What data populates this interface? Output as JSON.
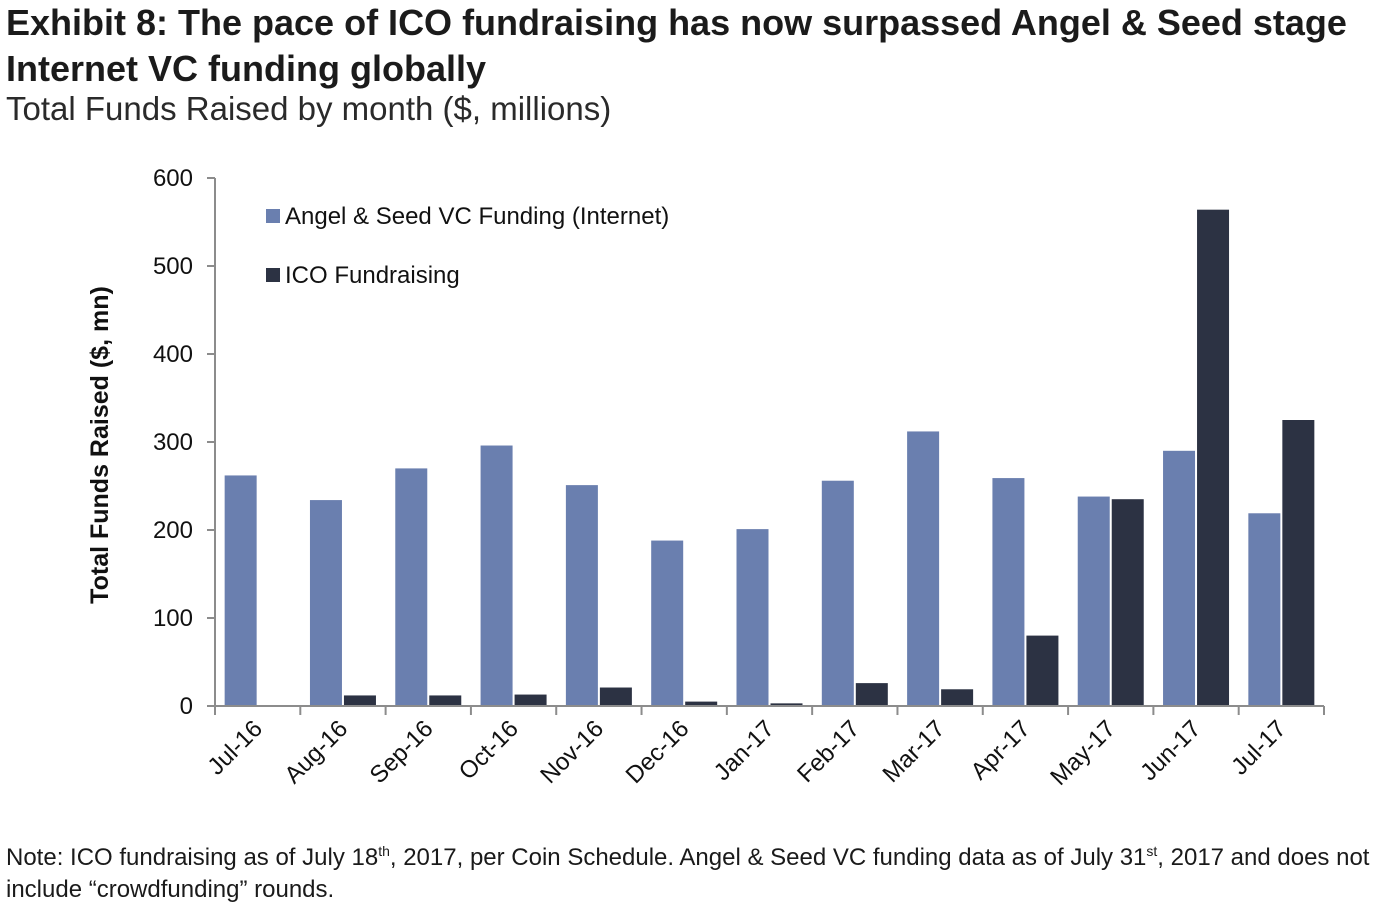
{
  "title": "Exhibit 8: The pace of ICO fundraising has now surpassed Angel & Seed stage Internet VC funding globally",
  "subtitle": "Total Funds Raised by month ($, millions)",
  "note": {
    "p1": "Note: ICO fundraising as of July 18",
    "sup1": "th",
    "p2": ", 2017, per Coin Schedule. Angel & Seed VC funding data as of July 31",
    "sup2": "st",
    "p3": ", 2017 and does not include “crowdfunding” rounds."
  },
  "chart_data": {
    "type": "bar",
    "ylabel": "Total Funds Raised ($, mn)",
    "xlabel": "",
    "ylim": [
      0,
      600
    ],
    "yticks": [
      0,
      100,
      200,
      300,
      400,
      500,
      600
    ],
    "categories": [
      "Jul-16",
      "Aug-16",
      "Sep-16",
      "Oct-16",
      "Nov-16",
      "Dec-16",
      "Jan-17",
      "Feb-17",
      "Mar-17",
      "Apr-17",
      "May-17",
      "Jun-17",
      "Jul-17"
    ],
    "series": [
      {
        "name": "Angel & Seed VC Funding (Internet)",
        "color": "#6a7faf",
        "values": [
          262,
          234,
          270,
          296,
          251,
          188,
          201,
          256,
          312,
          259,
          238,
          290,
          219
        ]
      },
      {
        "name": "ICO Fundraising",
        "color": "#2c3243",
        "values": [
          1,
          12,
          12,
          13,
          21,
          5,
          3,
          26,
          19,
          80,
          235,
          564,
          325
        ]
      }
    ],
    "legend": "top-left",
    "grid": false
  }
}
